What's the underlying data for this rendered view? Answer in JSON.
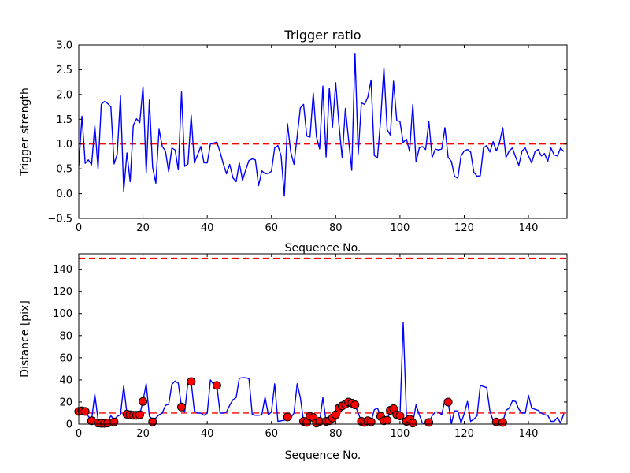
{
  "figure": {
    "background": "#ffffff",
    "title": "Trigger ratio"
  },
  "chart_data": [
    {
      "type": "line",
      "title": "Trigger ratio",
      "xlabel": "Sequence No.",
      "ylabel": "Trigger strength",
      "xlim": [
        0,
        152
      ],
      "ylim": [
        -0.5,
        3.0
      ],
      "xticks": [
        0,
        20,
        40,
        60,
        80,
        100,
        120,
        140
      ],
      "xtick_labels": [
        "0",
        "20",
        "40",
        "60",
        "80",
        "100",
        "120",
        "140"
      ],
      "yticks": [
        -0.5,
        0.0,
        0.5,
        1.0,
        1.5,
        2.0,
        2.5,
        3.0
      ],
      "ytick_labels": [
        "−0.5",
        "0.0",
        "0.5",
        "1.0",
        "1.5",
        "2.0",
        "2.5",
        "3.0"
      ],
      "grid": false,
      "legend": null,
      "line_color": "#0000ff",
      "thresholds": [
        {
          "y": 1.0,
          "color": "#ff0000",
          "style": "dashed"
        }
      ],
      "x_start": 0,
      "x_step": 1,
      "values": [
        0.55,
        1.56,
        0.61,
        0.68,
        0.58,
        1.37,
        0.5,
        1.8,
        1.86,
        1.82,
        1.75,
        0.6,
        0.8,
        1.97,
        0.05,
        0.82,
        0.24,
        1.38,
        1.51,
        1.43,
        2.16,
        0.42,
        1.89,
        0.53,
        0.21,
        1.3,
        0.95,
        0.86,
        0.44,
        0.92,
        0.88,
        0.48,
        2.05,
        0.55,
        0.6,
        1.58,
        0.62,
        0.78,
        0.95,
        0.62,
        0.62,
        1.0,
        1.02,
        1.04,
        0.84,
        0.6,
        0.4,
        0.59,
        0.32,
        0.24,
        0.62,
        0.27,
        0.48,
        0.67,
        0.7,
        0.68,
        0.16,
        0.46,
        0.4,
        0.41,
        0.45,
        0.92,
        0.97,
        0.76,
        -0.05,
        1.41,
        0.84,
        0.59,
        1.16,
        1.73,
        1.8,
        1.16,
        1.14,
        2.03,
        1.15,
        0.9,
        2.17,
        0.74,
        2.13,
        1.34,
        2.24,
        1.4,
        0.72,
        1.72,
        1.1,
        0.47,
        2.83,
        0.8,
        1.83,
        1.8,
        1.95,
        2.29,
        0.77,
        0.72,
        1.5,
        2.54,
        1.29,
        1.18,
        2.27,
        1.48,
        1.45,
        1.03,
        1.1,
        0.85,
        1.8,
        0.64,
        0.92,
        0.95,
        0.89,
        1.45,
        0.73,
        0.9,
        0.88,
        0.9,
        1.33,
        0.73,
        0.65,
        0.35,
        0.31,
        0.76,
        0.86,
        0.89,
        0.84,
        0.43,
        0.35,
        0.36,
        0.92,
        0.97,
        0.84,
        1.05,
        0.86,
        1.03,
        1.33,
        0.73,
        0.86,
        0.92,
        0.74,
        0.57,
        0.86,
        0.92,
        0.76,
        0.62,
        0.84,
        0.89,
        0.76,
        0.81,
        0.65,
        0.92,
        0.78,
        0.76,
        0.92,
        0.85
      ]
    },
    {
      "type": "line+scatter",
      "title": "",
      "xlabel": "Sequence No.",
      "ylabel": "Distance [pix]",
      "xlim": [
        0,
        152
      ],
      "ylim": [
        0,
        154
      ],
      "xticks": [
        0,
        20,
        40,
        60,
        80,
        100,
        120,
        140
      ],
      "xtick_labels": [
        "0",
        "20",
        "40",
        "60",
        "80",
        "100",
        "120",
        "140"
      ],
      "yticks": [
        0,
        20,
        40,
        60,
        80,
        100,
        120,
        140
      ],
      "ytick_labels": [
        "0",
        "20",
        "40",
        "60",
        "80",
        "100",
        "120",
        "140"
      ],
      "grid": false,
      "legend": null,
      "line_color": "#0000ff",
      "scatter_color": "#ff0000",
      "scatter_edge_color": "#000000",
      "thresholds": [
        {
          "y": 150,
          "color": "#ff0000",
          "style": "dashed"
        },
        {
          "y": 10,
          "color": "#ff0000",
          "style": "dashed"
        }
      ],
      "x_start": 0,
      "x_step": 1,
      "values": [
        12,
        12.5,
        12,
        7,
        4,
        27,
        4,
        2,
        1.5,
        2.5,
        7.5,
        4,
        7,
        8.5,
        34.5,
        9.5,
        8.5,
        8,
        8,
        8.5,
        21,
        36.5,
        7,
        4.5,
        5.5,
        8.5,
        10,
        17,
        18,
        36,
        39,
        37,
        15.5,
        11,
        38.5,
        38,
        12,
        10,
        10,
        8,
        10,
        40,
        36,
        35,
        10,
        10,
        11,
        17,
        22,
        24,
        41.5,
        42,
        42,
        41,
        9,
        8,
        8,
        8.5,
        24.5,
        8.5,
        11,
        36.5,
        2.5,
        3,
        3.5,
        6.5,
        5.5,
        10,
        36.5,
        24,
        2.5,
        1.5,
        7,
        6,
        1,
        2.5,
        24,
        2.5,
        3,
        5.5,
        8.5,
        14.5,
        16.5,
        18,
        20,
        19,
        17.5,
        10,
        2.5,
        1.5,
        3,
        2,
        13,
        14.5,
        7,
        3,
        3.5,
        12.5,
        14,
        8.5,
        7.5,
        92,
        8.5,
        4.5,
        1,
        17.5,
        8.5,
        1,
        0.7,
        1.5,
        7.5,
        11,
        11,
        8.5,
        22,
        20,
        0.5,
        12,
        12,
        1,
        9.5,
        20.5,
        2.5,
        4.5,
        7.5,
        35,
        34,
        33,
        12,
        3,
        2,
        1,
        1.5,
        12.5,
        14.5,
        21,
        20.5,
        13.5,
        10,
        10,
        26,
        14.5,
        13.5,
        12.5,
        10,
        8.5,
        8,
        2.5,
        2.5,
        6,
        1,
        9.5
      ],
      "scatter": [
        [
          0,
          11.5
        ],
        [
          1,
          12
        ],
        [
          2,
          11.5
        ],
        [
          4,
          3
        ],
        [
          6,
          1
        ],
        [
          7,
          0.7
        ],
        [
          8,
          0.7
        ],
        [
          9,
          1
        ],
        [
          11,
          2
        ],
        [
          15,
          9
        ],
        [
          16,
          8.5
        ],
        [
          17,
          8
        ],
        [
          18,
          8
        ],
        [
          19,
          8.5
        ],
        [
          20,
          20.5
        ],
        [
          23,
          2
        ],
        [
          32,
          15.5
        ],
        [
          35,
          38.5
        ],
        [
          43,
          35
        ],
        [
          65,
          6.5
        ],
        [
          70,
          2.5
        ],
        [
          71,
          1.5
        ],
        [
          72,
          7
        ],
        [
          73,
          6
        ],
        [
          74,
          1
        ],
        [
          75,
          2.5
        ],
        [
          77,
          2.5
        ],
        [
          78,
          3
        ],
        [
          79,
          5.5
        ],
        [
          80,
          8.5
        ],
        [
          81,
          14.5
        ],
        [
          82,
          16.5
        ],
        [
          83,
          18
        ],
        [
          84,
          20
        ],
        [
          85,
          19
        ],
        [
          86,
          17.5
        ],
        [
          88,
          2.5
        ],
        [
          89,
          1.5
        ],
        [
          90,
          3
        ],
        [
          91,
          2
        ],
        [
          94,
          7
        ],
        [
          95,
          3
        ],
        [
          96,
          3.5
        ],
        [
          97,
          12.5
        ],
        [
          98,
          14
        ],
        [
          99,
          8.5
        ],
        [
          100,
          7.5
        ],
        [
          102,
          2.5
        ],
        [
          103,
          4.5
        ],
        [
          104,
          1
        ],
        [
          109,
          1.5
        ],
        [
          115,
          20
        ],
        [
          130,
          2
        ],
        [
          132,
          1.5
        ]
      ]
    }
  ]
}
